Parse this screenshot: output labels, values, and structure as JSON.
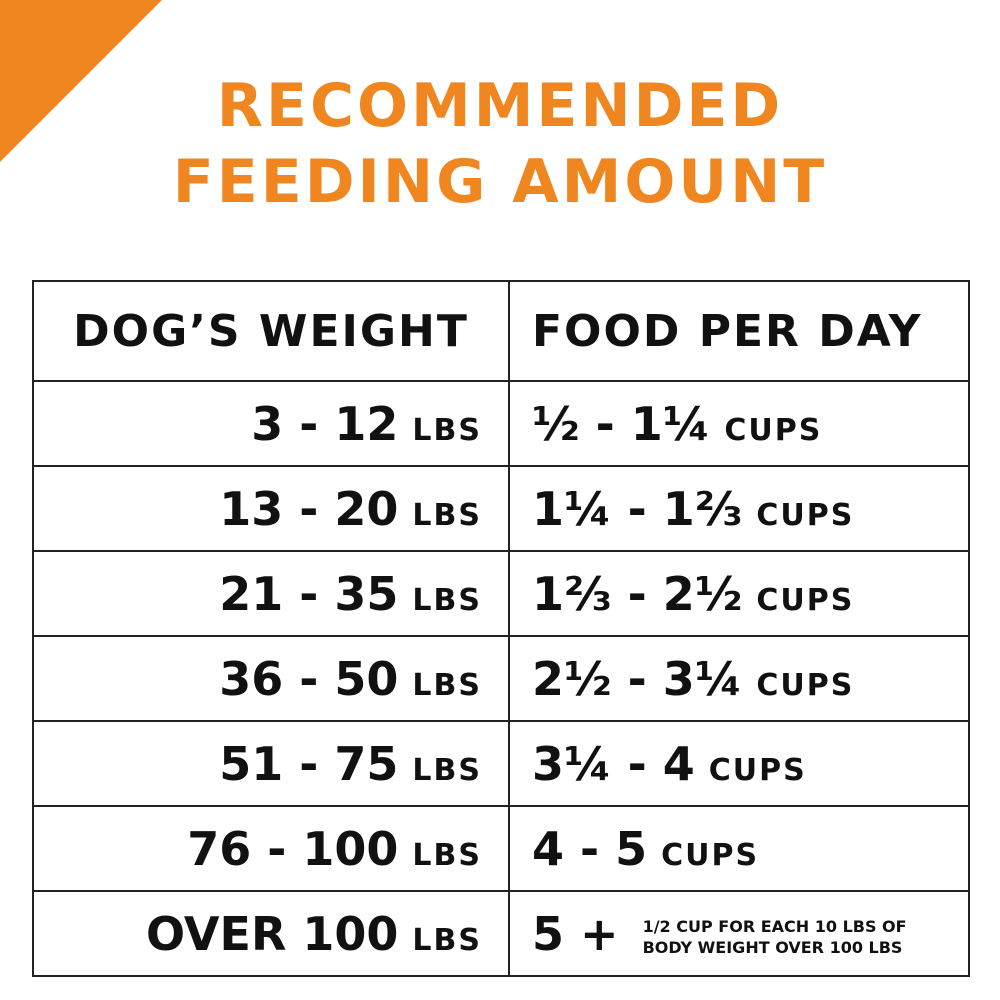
{
  "header": {
    "title": [
      "RECOMMENDED",
      "FEEDING AMOUNT"
    ]
  },
  "table": {
    "columns": [
      "DOG’S WEIGHT",
      "FOOD PER DAY"
    ],
    "rows": [
      [
        "3 - 12",
        "LBS",
        "½ - 1¼",
        "CUPS"
      ],
      [
        "13 - 20",
        "LBS",
        "1¼ - 1⅔",
        "CUPS"
      ],
      [
        "21 - 35",
        "LBS",
        "1⅔ - 2½",
        "CUPS"
      ],
      [
        "36 - 50",
        "LBS",
        "2½ - 3¼",
        "CUPS"
      ],
      [
        "51 - 75",
        "LBS",
        "3¼ - 4",
        "CUPS"
      ],
      [
        "76 - 100",
        "LBS",
        "4 - 5",
        "CUPS"
      ],
      [
        "OVER 100",
        "LBS",
        "5 +"
      ]
    ],
    "note": [
      "1/2 CUP FOR EACH 10 LBS OF",
      "BODY WEIGHT OVER 100 LBS"
    ]
  }
}
